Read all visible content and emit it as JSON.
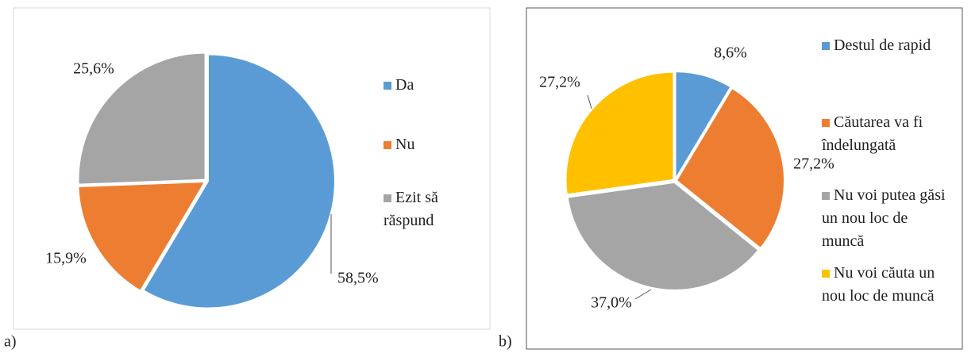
{
  "chart_data": [
    {
      "type": "pie",
      "panel_label": "a)",
      "categories": [
        "Da",
        "Nu",
        "Ezit să răspund"
      ],
      "values": [
        58.5,
        15.9,
        25.6
      ],
      "value_labels": [
        "58,5%",
        "15,9%",
        "25,6%"
      ],
      "colors": [
        "#5b9bd5",
        "#ed7d31",
        "#a5a5a5"
      ],
      "legend": "right"
    },
    {
      "type": "pie",
      "panel_label": "b)",
      "categories": [
        "Destul de rapid",
        "Căutarea va fi îndelungată",
        "Nu voi putea găsi un nou loc de muncă",
        "Nu voi căuta un nou loc de muncă"
      ],
      "values": [
        8.6,
        27.2,
        37.0,
        27.2
      ],
      "value_labels": [
        "8,6%",
        "27,2%",
        "37,0%",
        "27,2%"
      ],
      "colors": [
        "#5b9bd5",
        "#ed7d31",
        "#a5a5a5",
        "#ffc000"
      ],
      "legend": "right"
    }
  ]
}
